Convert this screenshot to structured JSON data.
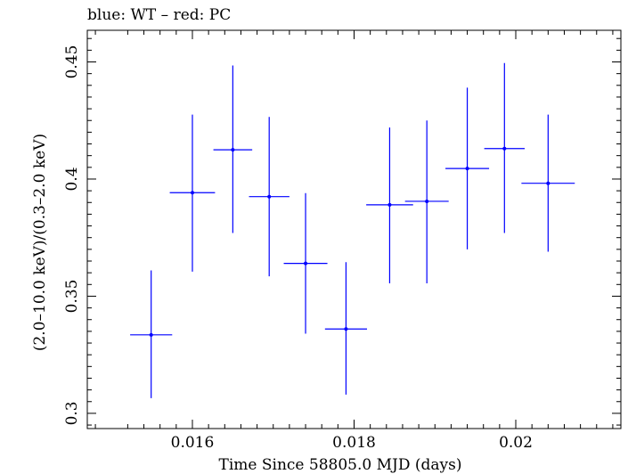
{
  "chart_data": {
    "type": "scatter",
    "title": "blue: WT – red: PC",
    "xlabel": "Time Since 58805.0 MJD (days)",
    "ylabel": "(2.0–10.0 keV)/(0.3–2.0 keV)",
    "xlim": [
      0.0147,
      0.0213
    ],
    "ylim": [
      0.2935,
      0.4635
    ],
    "x_major_ticks": [
      0.016,
      0.018,
      0.02
    ],
    "x_tick_labels": [
      "0.016",
      "0.018",
      "0.02"
    ],
    "x_minor_ticks": [
      0.0148,
      0.0152,
      0.0154,
      0.0156,
      0.0158,
      0.0162,
      0.0164,
      0.0166,
      0.0168,
      0.017,
      0.0172,
      0.0174,
      0.0176,
      0.0178,
      0.0182,
      0.0184,
      0.0186,
      0.0188,
      0.019,
      0.0192,
      0.0194,
      0.0196,
      0.0198,
      0.0202,
      0.0204,
      0.0206,
      0.0208,
      0.021,
      0.0212
    ],
    "y_major_ticks": [
      0.3,
      0.35,
      0.4,
      0.45
    ],
    "y_tick_labels": [
      "0.3",
      "0.35",
      "0.4",
      "0.45"
    ],
    "y_minor_ticks": [
      0.295,
      0.305,
      0.31,
      0.315,
      0.32,
      0.325,
      0.33,
      0.335,
      0.34,
      0.345,
      0.355,
      0.36,
      0.365,
      0.37,
      0.375,
      0.38,
      0.385,
      0.39,
      0.395,
      0.405,
      0.41,
      0.415,
      0.42,
      0.425,
      0.43,
      0.435,
      0.44,
      0.445,
      0.455,
      0.46
    ],
    "series": [
      {
        "color": "#0000ff",
        "points": [
          {
            "x": 0.01549,
            "xerr": 0.00026,
            "y": 0.3335,
            "ylo": 0.3065,
            "yhi": 0.361
          },
          {
            "x": 0.016,
            "xerr": 0.00028,
            "y": 0.3942,
            "ylo": 0.3605,
            "yhi": 0.4275
          },
          {
            "x": 0.0165,
            "xerr": 0.00024,
            "y": 0.4125,
            "ylo": 0.377,
            "yhi": 0.4485
          },
          {
            "x": 0.01695,
            "xerr": 0.00025,
            "y": 0.3925,
            "ylo": 0.3585,
            "yhi": 0.4265
          },
          {
            "x": 0.0174,
            "xerr": 0.00027,
            "y": 0.364,
            "ylo": 0.334,
            "yhi": 0.394
          },
          {
            "x": 0.0179,
            "xerr": 0.00026,
            "y": 0.336,
            "ylo": 0.308,
            "yhi": 0.3645
          },
          {
            "x": 0.01844,
            "xerr": 0.00029,
            "y": 0.389,
            "ylo": 0.3555,
            "yhi": 0.422
          },
          {
            "x": 0.0189,
            "xerr": 0.00027,
            "y": 0.3905,
            "ylo": 0.3555,
            "yhi": 0.425
          },
          {
            "x": 0.0194,
            "xerr": 0.00027,
            "y": 0.4045,
            "ylo": 0.37,
            "yhi": 0.439
          },
          {
            "x": 0.01986,
            "xerr": 0.00025,
            "y": 0.413,
            "ylo": 0.377,
            "yhi": 0.4495
          },
          {
            "x": 0.0204,
            "xerr": 0.00033,
            "y": 0.3982,
            "ylo": 0.369,
            "yhi": 0.4275
          }
        ]
      }
    ]
  }
}
